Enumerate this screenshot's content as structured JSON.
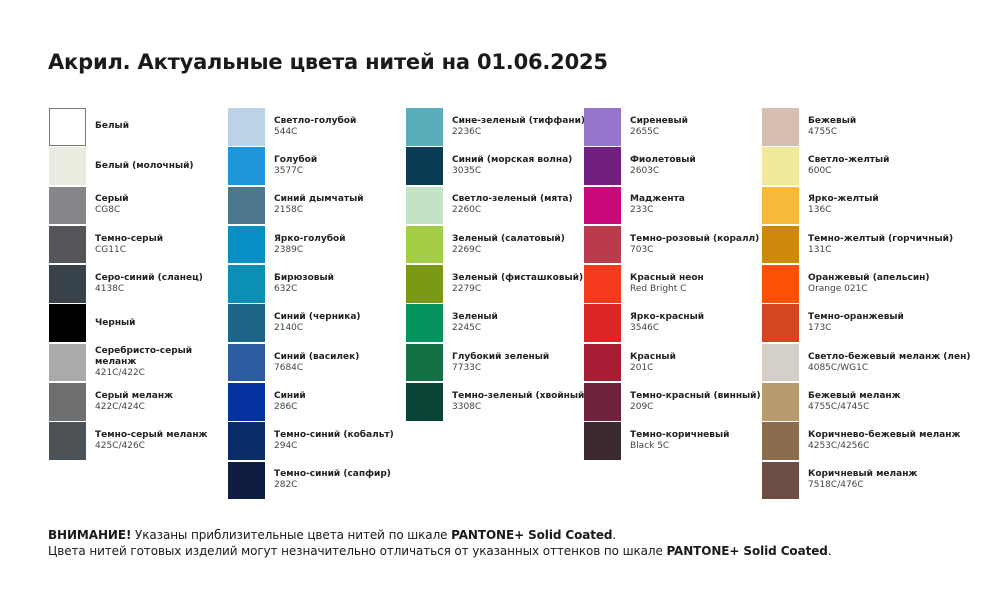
{
  "title": "Акрил. Актуальные цвета нитей на 01.06.2025",
  "columns": [
    [
      {
        "name": "Белый",
        "code": "",
        "color": "#ffffff"
      },
      {
        "name": "Белый (молочный)",
        "code": "",
        "color": "#ebebdf"
      },
      {
        "name": "Серый",
        "code": "CG8C",
        "color": "#86878b"
      },
      {
        "name": "Темно-серый",
        "code": "CG11C",
        "color": "#545559"
      },
      {
        "name": "Серо-синий (сланец)",
        "code": "4138C",
        "color": "#37424b"
      },
      {
        "name": "Черный",
        "code": "",
        "color": "#000000"
      },
      {
        "name": "Серебристо-серый меланж",
        "code": "421C/422C",
        "color": "#a9abaa"
      },
      {
        "name": "Серый меланж",
        "code": "422C/424C",
        "color": "#6e6f70"
      },
      {
        "name": "Темно-серый меланж",
        "code": "425C/426C",
        "color": "#4d5256"
      }
    ],
    [
      {
        "name": "Светло-голубой",
        "code": "544C",
        "color": "#bcd3e7"
      },
      {
        "name": "Голубой",
        "code": "3577C",
        "color": "#1f96dc"
      },
      {
        "name": "Синий дымчатый",
        "code": "2158C",
        "color": "#4d778f"
      },
      {
        "name": "Ярко-голубой",
        "code": "2389C",
        "color": "#0a8fc5"
      },
      {
        "name": "Бирюзовый",
        "code": "632C",
        "color": "#0a90b5"
      },
      {
        "name": "Синий (черника)",
        "code": "2140C",
        "color": "#1e6689"
      },
      {
        "name": "Синий (василек)",
        "code": "7684C",
        "color": "#2c5ba0"
      },
      {
        "name": "Синий",
        "code": "286C",
        "color": "#0433a0"
      },
      {
        "name": "Темно-синий (кобальт)",
        "code": "294C",
        "color": "#0a2d69"
      },
      {
        "name": "Темно-синий (сапфир)",
        "code": "282C",
        "color": "#0f1d41"
      }
    ],
    [
      {
        "name": "Сине-зеленый (тиффани)",
        "code": "2236C",
        "color": "#5aaebc"
      },
      {
        "name": "Синий (морская волна)",
        "code": "3035C",
        "color": "#0c3c54"
      },
      {
        "name": "Светло-зеленый (мята)",
        "code": "2260C",
        "color": "#c4e2c5"
      },
      {
        "name": "Зеленый (салатовый)",
        "code": "2269C",
        "color": "#a3cc47"
      },
      {
        "name": "Зеленый (фисташковый)",
        "code": "2279C",
        "color": "#7a9a17"
      },
      {
        "name": "Зеленый",
        "code": "2245C",
        "color": "#06945e"
      },
      {
        "name": "Глубокий зеленый",
        "code": "7733C",
        "color": "#147045"
      },
      {
        "name": "Темно-зеленый (хвойный)",
        "code": "3308C",
        "color": "#0b4337"
      }
    ],
    [
      {
        "name": "Сиреневый",
        "code": "2655C",
        "color": "#9676cd"
      },
      {
        "name": "Фиолетовый",
        "code": "2603C",
        "color": "#72207f"
      },
      {
        "name": "Маджента",
        "code": "233C",
        "color": "#c9097a"
      },
      {
        "name": "Темно-розовый (коралл)",
        "code": "703C",
        "color": "#b93b4c"
      },
      {
        "name": "Красный неон",
        "code": "Red Bright C",
        "color": "#f53a1d"
      },
      {
        "name": "Ярко-красный",
        "code": "3546C",
        "color": "#dc2626"
      },
      {
        "name": "Красный",
        "code": "201C",
        "color": "#a71e34"
      },
      {
        "name": "Темно-красный (винный)",
        "code": "209C",
        "color": "#71223b"
      },
      {
        "name": "Темно-коричневый",
        "code": "Black 5C",
        "color": "#3b2a2e"
      }
    ],
    [
      {
        "name": "Бежевый",
        "code": "4755C",
        "color": "#d6beb1"
      },
      {
        "name": "Светло-желтый",
        "code": "600C",
        "color": "#f0e99c"
      },
      {
        "name": "Ярко-желтый",
        "code": "136C",
        "color": "#f6b93a"
      },
      {
        "name": "Темно-желтый (горчичный)",
        "code": "131C",
        "color": "#cd8a0a"
      },
      {
        "name": "Оранжевый (апельсин)",
        "code": "Orange 021C",
        "color": "#fc5105"
      },
      {
        "name": "Темно-оранжевый",
        "code": "173C",
        "color": "#d24722"
      },
      {
        "name": "Светло-бежевый меланж (лен)",
        "code": "4085C/WG1C",
        "color": "#d4d0c9"
      },
      {
        "name": "Бежевый меланж",
        "code": "4755C/4745C",
        "color": "#b89a6c"
      },
      {
        "name": "Коричнево-бежевый меланж",
        "code": "4253C/4256C",
        "color": "#8b6c4c"
      },
      {
        "name": "Коричневый меланж",
        "code": "7518C/476C",
        "color": "#6b4e46"
      }
    ]
  ],
  "footer": {
    "line1_bold": "ВНИМАНИЕ!",
    "line1_text": " Указаны приблизительные цвета нитей по шкале ",
    "line1_scale": "PANTONE+ Solid Coated",
    "line1_end": ".",
    "line2_text": "Цвета нитей готовых изделий могут незначительно отличаться от указанных оттенков по шкале ",
    "line2_scale": "PANTONE+ Solid Coated",
    "line2_end": "."
  }
}
